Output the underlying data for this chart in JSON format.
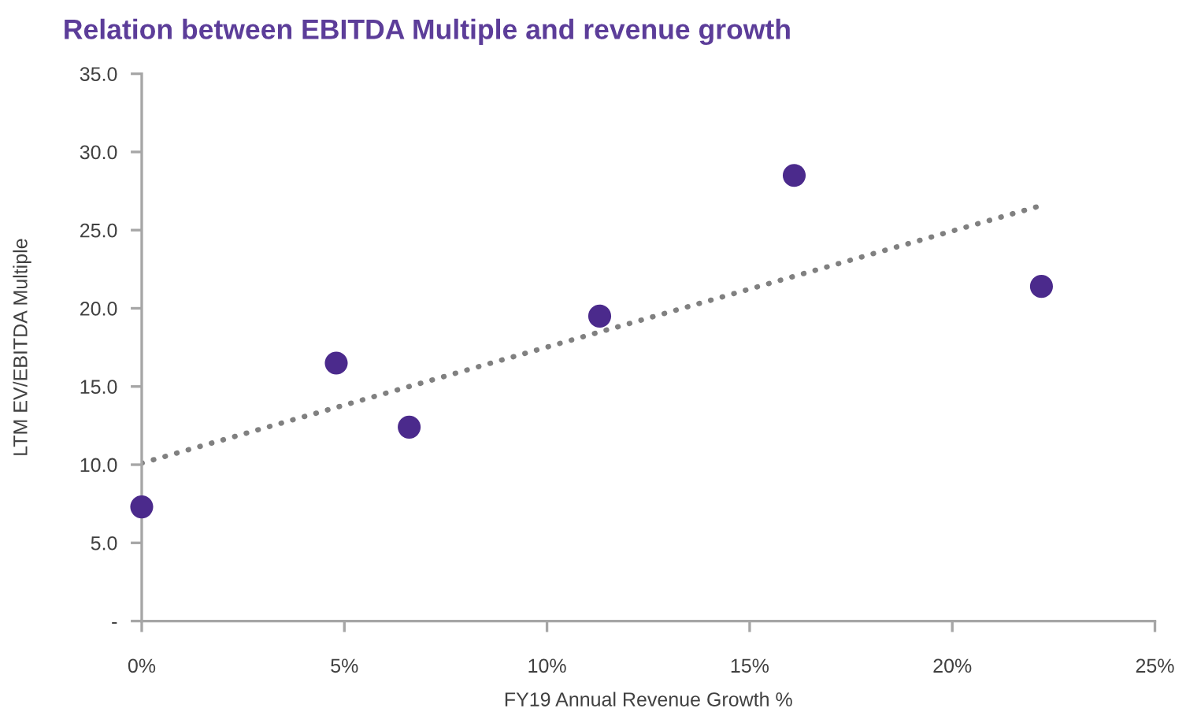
{
  "chart_data": {
    "type": "scatter",
    "title": "Relation between EBITDA Multiple and revenue growth",
    "xlabel": "FY19 Annual Revenue Growth %",
    "ylabel": "LTM EV/EBITDA Multiple",
    "xlim": [
      0,
      25
    ],
    "xticks": [
      {
        "value": 0,
        "label": "0%"
      },
      {
        "value": 5,
        "label": "5%"
      },
      {
        "value": 10,
        "label": "10%"
      },
      {
        "value": 15,
        "label": "15%"
      },
      {
        "value": 20,
        "label": "20%"
      },
      {
        "value": 25,
        "label": "25%"
      }
    ],
    "ylim": [
      0,
      35
    ],
    "yticks": [
      {
        "value": 0,
        "label": "-"
      },
      {
        "value": 5,
        "label": "5.0"
      },
      {
        "value": 10,
        "label": "10.0"
      },
      {
        "value": 15,
        "label": "15.0"
      },
      {
        "value": 20,
        "label": "20.0"
      },
      {
        "value": 25,
        "label": "25.0"
      },
      {
        "value": 30,
        "label": "30.0"
      },
      {
        "value": 35,
        "label": "35.0"
      }
    ],
    "grid": false,
    "marker": "circle",
    "series": [
      {
        "color": "#4b2a8c",
        "x": [
          0,
          4.8,
          6.6,
          11.3,
          16.1,
          22.2
        ],
        "values": [
          7.3,
          16.5,
          12.4,
          19.5,
          28.5,
          21.4
        ]
      },
      {
        "type": "line",
        "color": "#808080",
        "line_style": "dotted",
        "marker": "none",
        "x": [
          0,
          22.1
        ],
        "values": [
          10.1,
          26.5
        ]
      }
    ]
  }
}
